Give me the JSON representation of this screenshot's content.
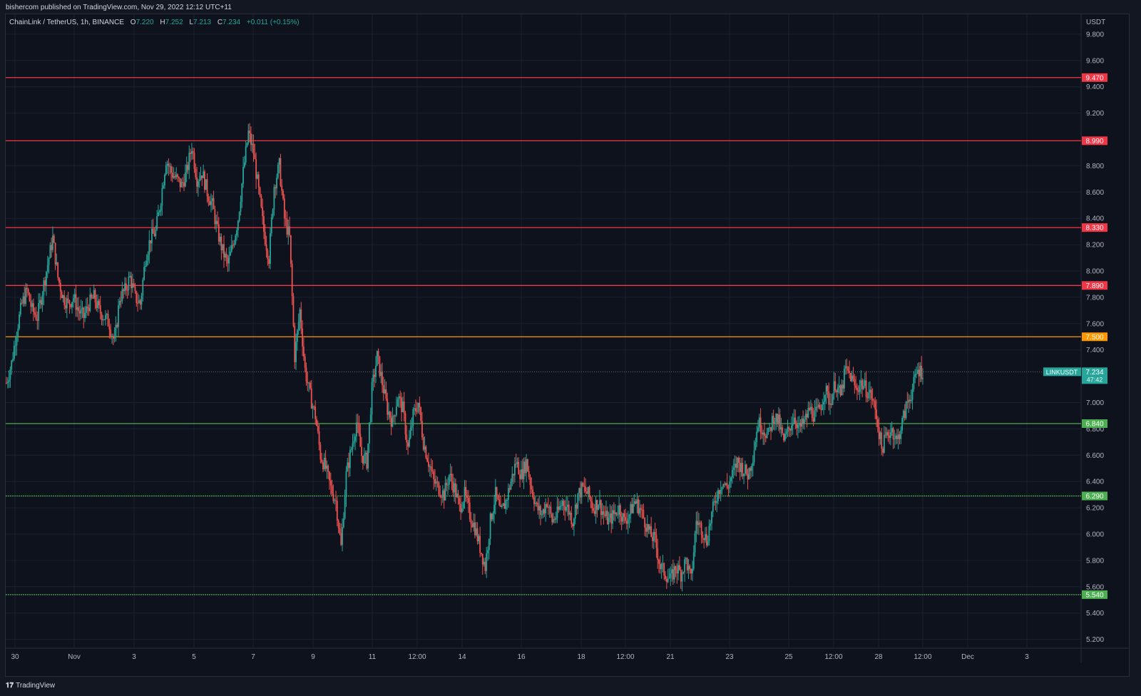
{
  "header": {
    "published_text": "bishercom published on TradingView.com, Nov 29, 2022 12:12 UTC+11"
  },
  "legend": {
    "symbol": "ChainLink / TetherUS, 1h, BINANCE",
    "open_label": "O",
    "open": "7.220",
    "high_label": "H",
    "high": "7.252",
    "low_label": "L",
    "low": "7.213",
    "close_label": "C",
    "close": "7.234",
    "change": "+0.011 (+0.15%)"
  },
  "price_axis": {
    "currency": "USDT",
    "ticks": [
      "9.800",
      "9.600",
      "9.400",
      "9.200",
      "8.800",
      "8.600",
      "8.400",
      "8.200",
      "8.000",
      "7.800",
      "7.600",
      "7.400",
      "7.000",
      "6.800",
      "6.600",
      "6.400",
      "6.200",
      "6.000",
      "5.800",
      "5.600",
      "5.400",
      "5.200"
    ]
  },
  "time_axis": {
    "labels": [
      "30",
      "Nov",
      "3",
      "5",
      "7",
      "9",
      "11",
      "12:00",
      "14",
      "16",
      "18",
      "12:00",
      "21",
      "23",
      "25",
      "12:00",
      "28",
      "12:00",
      "Dec",
      "3"
    ]
  },
  "levels": [
    {
      "value": 9.47,
      "label": "9.470",
      "color": "#f23645",
      "style": "solid"
    },
    {
      "value": 8.99,
      "label": "8.990",
      "color": "#f23645",
      "style": "solid"
    },
    {
      "value": 8.33,
      "label": "8.330",
      "color": "#f23645",
      "style": "solid"
    },
    {
      "value": 7.89,
      "label": "7.890",
      "color": "#f23645",
      "style": "solid"
    },
    {
      "value": 7.5,
      "label": "7.500",
      "color": "#ff9800",
      "style": "solid"
    },
    {
      "value": 6.84,
      "label": "6.840",
      "color": "#4caf50",
      "style": "solid"
    },
    {
      "value": 6.29,
      "label": "6.290",
      "color": "#4caf50",
      "style": "dotted"
    },
    {
      "value": 5.54,
      "label": "5.540",
      "color": "#4caf50",
      "style": "dotted"
    }
  ],
  "current_price": {
    "ticker": "LINKUSDT",
    "price": "7.234",
    "countdown": "47:42",
    "value": 7.234
  },
  "chart_data": {
    "type": "candlestick",
    "title": "ChainLink / TetherUS, 1h, BINANCE",
    "ylabel": "USDT",
    "ylim": [
      5.1,
      9.9
    ],
    "x": [
      "Oct 30",
      "Nov 1",
      "Nov 3",
      "Nov 5",
      "Nov 7",
      "Nov 9",
      "Nov 11",
      "Nov 12",
      "Nov 14",
      "Nov 16",
      "Nov 18",
      "Nov 19",
      "Nov 21",
      "Nov 23",
      "Nov 25",
      "Nov 26",
      "Nov 28",
      "Nov 29"
    ],
    "close_path": [
      7.15,
      7.3,
      7.55,
      7.75,
      7.85,
      7.7,
      7.65,
      7.85,
      8.05,
      8.25,
      7.95,
      7.8,
      7.75,
      7.8,
      7.7,
      7.65,
      7.75,
      7.8,
      7.7,
      7.65,
      7.6,
      7.45,
      7.8,
      7.85,
      7.95,
      7.8,
      7.75,
      8.1,
      8.25,
      8.3,
      8.55,
      8.85,
      8.75,
      8.7,
      8.65,
      8.75,
      8.95,
      8.7,
      8.75,
      8.6,
      8.5,
      8.3,
      8.15,
      8.05,
      8.2,
      8.4,
      8.75,
      9.05,
      8.9,
      8.6,
      8.3,
      8.1,
      8.65,
      8.8,
      8.4,
      8.25,
      7.35,
      7.7,
      7.25,
      7.05,
      6.9,
      6.6,
      6.5,
      6.35,
      6.25,
      5.9,
      6.45,
      6.65,
      6.85,
      6.6,
      6.55,
      7.1,
      7.35,
      7.15,
      6.95,
      6.85,
      7.05,
      6.95,
      6.65,
      6.9,
      7.0,
      6.7,
      6.55,
      6.4,
      6.35,
      6.3,
      6.45,
      6.35,
      6.2,
      6.3,
      6.15,
      6.05,
      5.9,
      5.75,
      6.1,
      6.3,
      6.15,
      6.25,
      6.4,
      6.55,
      6.45,
      6.55,
      6.35,
      6.2,
      6.15,
      6.25,
      6.1,
      6.15,
      6.25,
      6.2,
      6.1,
      6.3,
      6.35,
      6.3,
      6.2,
      6.25,
      6.15,
      6.1,
      6.15,
      6.2,
      6.1,
      6.15,
      6.25,
      6.2,
      6.1,
      6.0,
      5.95,
      5.75,
      5.7,
      5.65,
      5.75,
      5.7,
      5.8,
      5.65,
      6.1,
      6.05,
      5.95,
      6.15,
      6.3,
      6.4,
      6.35,
      6.45,
      6.55,
      6.5,
      6.45,
      6.6,
      6.85,
      6.8,
      6.75,
      6.9,
      6.85,
      6.7,
      6.8,
      6.9,
      6.8,
      6.85,
      6.95,
      6.9,
      6.95,
      7.1,
      7.0,
      7.15,
      7.05,
      7.25,
      7.2,
      7.1,
      7.15,
      7.1,
      7.05,
      6.9,
      6.65,
      6.75,
      6.8,
      6.7,
      6.85,
      7.0,
      7.1,
      7.25,
      7.234
    ]
  },
  "footer": {
    "brand": "TradingView"
  },
  "colors": {
    "background": "#0e121d",
    "grid": "#1c2030",
    "up": "#26a69a",
    "down": "#ef5350",
    "axis_text": "#b2b5be"
  }
}
